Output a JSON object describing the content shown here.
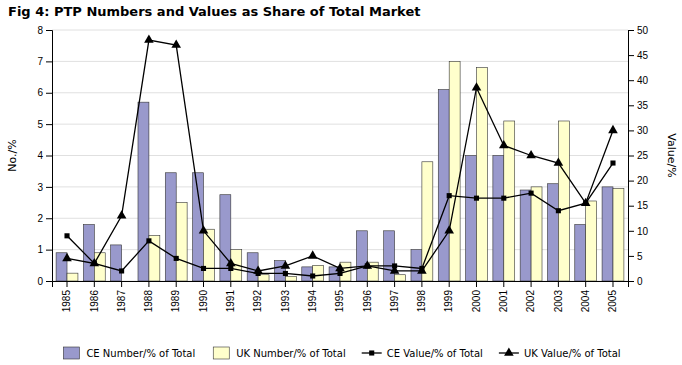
{
  "chart_data": {
    "type": "bar",
    "title": "Fig 4: PTP Numbers and Values as Share of Total Market",
    "categories": [
      "1985",
      "1986",
      "1987",
      "1988",
      "1989",
      "1990",
      "1991",
      "1992",
      "1993",
      "1994",
      "1995",
      "1996",
      "1997",
      "1998",
      "1999",
      "2000",
      "2001",
      "2002",
      "2003",
      "2004",
      "2005"
    ],
    "series": [
      {
        "name": "CE Number/% of Total",
        "type": "bar",
        "color": "#9999cc",
        "values": [
          0.9,
          1.8,
          1.15,
          5.7,
          3.45,
          3.45,
          2.75,
          0.9,
          0.65,
          0.45,
          0.45,
          1.6,
          1.6,
          1.0,
          6.1,
          4.0,
          4.0,
          2.9,
          3.1,
          1.8,
          3.0
        ]
      },
      {
        "name": "UK Number/% of Total",
        "type": "bar",
        "color": "#ffffcc",
        "values": [
          0.25,
          0.9,
          0.0,
          1.45,
          2.5,
          1.65,
          1.0,
          0.2,
          0.15,
          0.5,
          0.6,
          0.6,
          0.2,
          3.8,
          7.0,
          6.8,
          5.1,
          3.0,
          5.1,
          2.55,
          2.95
        ]
      },
      {
        "name": "CE Value/% of Total",
        "type": "line",
        "color": "#000000",
        "marker": "square",
        "axis": "y2",
        "values": [
          9.0,
          3.5,
          2.0,
          8.0,
          4.5,
          2.5,
          2.5,
          1.5,
          1.5,
          1.0,
          1.5,
          3.0,
          3.0,
          2.5,
          17.0,
          16.5,
          16.5,
          17.5,
          14.0,
          15.5,
          23.5
        ]
      },
      {
        "name": "UK Value/% of Total",
        "type": "line",
        "color": "#000000",
        "marker": "triangle",
        "axis": "y2",
        "values": [
          4.5,
          3.5,
          13.0,
          48.0,
          47.0,
          10.0,
          3.5,
          2.0,
          3.0,
          5.0,
          2.5,
          3.0,
          2.0,
          2.0,
          10.0,
          38.5,
          27.0,
          25.0,
          23.5,
          15.5,
          30.0
        ]
      }
    ],
    "ylabel": "No./%",
    "y2label": "Value/%",
    "ylim": [
      0,
      8
    ],
    "yticks": [
      0,
      1,
      2,
      3,
      4,
      5,
      6,
      7,
      8
    ],
    "y2lim": [
      0,
      50
    ],
    "y2ticks": [
      0,
      5,
      10,
      15,
      20,
      25,
      30,
      35,
      40,
      45,
      50
    ],
    "grid": true,
    "legend": "bottom"
  }
}
